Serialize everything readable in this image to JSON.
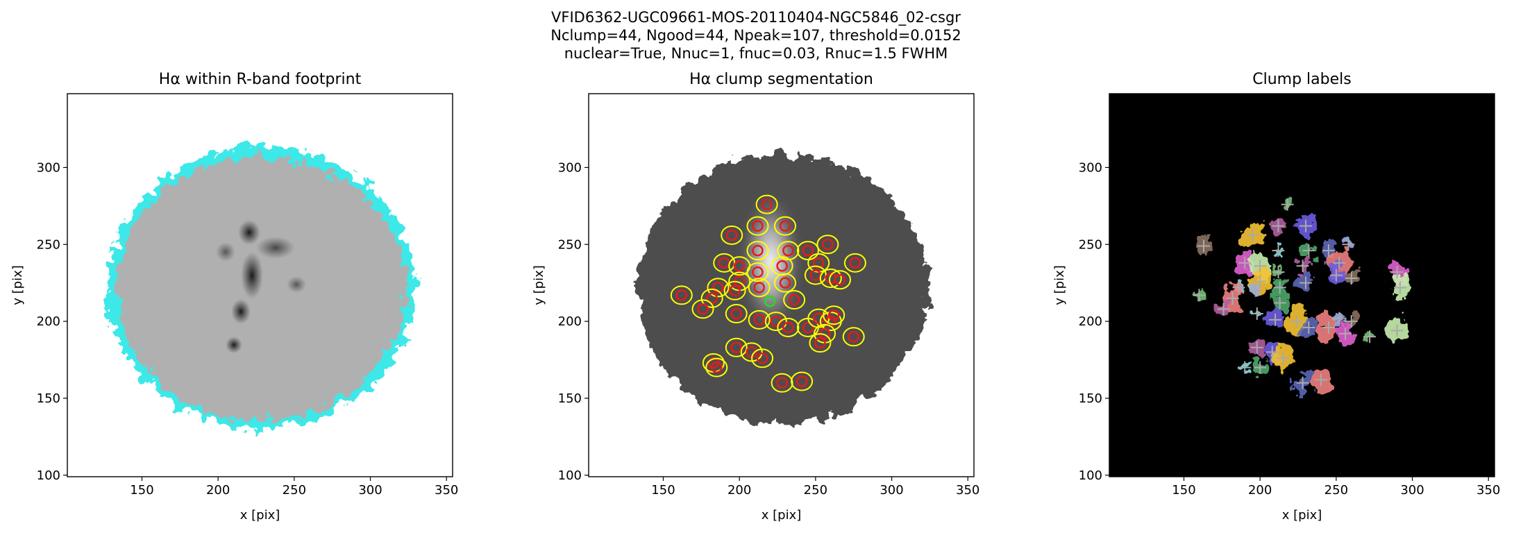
{
  "suptitle": [
    "VFID6362-UGC09661-MOS-20110404-NGC5846_02-csgr",
    "Nclump=44, Ngood=44, Npeak=107, threshold=0.0152",
    "nuclear=True, Nnuc=1, fnuc=0.03, Rnuc=1.5 FWHM"
  ],
  "chart_data": [
    {
      "type": "image",
      "title": "Hα within R-band footprint",
      "xlabel": "x [pix]",
      "ylabel": "y [pix]",
      "xlim": [
        101,
        354
      ],
      "ylim": [
        99,
        348
      ],
      "xticks": [
        150,
        200,
        250,
        300,
        350
      ],
      "yticks": [
        100,
        150,
        200,
        250,
        300
      ]
    },
    {
      "type": "image",
      "title": "Hα clump segmentation",
      "xlabel": "x [pix]",
      "ylabel": "y [pix]",
      "xlim": [
        101,
        354
      ],
      "ylim": [
        99,
        348
      ],
      "xticks": [
        150,
        200,
        250,
        300,
        350
      ],
      "yticks": [
        100,
        150,
        200,
        250,
        300
      ],
      "marker": "circle",
      "contour_color": "#ffff00",
      "series": [
        {
          "color": "#e8191c",
          "x": [
            218,
            212,
            230,
            195,
            212,
            232,
            245,
            252,
            258,
            190,
            200,
            212,
            228,
            250,
            200,
            186,
            213,
            230,
            182,
            197,
            260,
            266,
            276,
            162,
            176,
            198,
            224,
            213,
            232,
            245,
            252,
            260,
            256,
            275,
            198,
            208,
            215,
            183,
            185,
            228,
            241,
            253,
            262,
            236
          ],
          "y": [
            276,
            262,
            262,
            256,
            246,
            246,
            246,
            238,
            250,
            238,
            236,
            232,
            236,
            230,
            226,
            222,
            222,
            225,
            215,
            220,
            228,
            227,
            238,
            217,
            208,
            205,
            200,
            201,
            196,
            196,
            202,
            200,
            192,
            190,
            183,
            180,
            176,
            173,
            170,
            160,
            161,
            186,
            204,
            214
          ]
        },
        {
          "color": "#22dd22",
          "x": [
            220
          ],
          "y": [
            213
          ]
        }
      ]
    },
    {
      "type": "image",
      "title": "Clump labels",
      "xlabel": "x [pix]",
      "ylabel": "y [pix]",
      "xlim": [
        101,
        354
      ],
      "ylim": [
        99,
        348
      ],
      "xticks": [
        150,
        200,
        250,
        300,
        350
      ],
      "yticks": [
        100,
        150,
        200,
        250,
        300
      ],
      "marker": "plus",
      "background": "#000000",
      "palette": [
        "#6fbf73",
        "#b05fa0",
        "#6c5ce0",
        "#f5c431",
        "#7ee0e8",
        "#4da86a",
        "#5d68b8",
        "#f08080",
        "#9aaee8",
        "#8a7060",
        "#e060d0",
        "#c8f0b0"
      ],
      "series": [
        {
          "color": "#aaaaaa",
          "x": [
            218,
            212,
            230,
            195,
            212,
            232,
            245,
            252,
            258,
            163,
            190,
            200,
            212,
            228,
            250,
            200,
            186,
            213,
            230,
            182,
            197,
            260,
            290,
            292,
            160,
            176,
            210,
            224,
            198,
            213,
            232,
            245,
            252,
            260,
            256,
            290,
            272,
            198,
            208,
            215,
            190,
            200,
            228,
            240
          ],
          "y": [
            276,
            262,
            262,
            256,
            246,
            246,
            246,
            238,
            250,
            249,
            238,
            236,
            232,
            236,
            230,
            226,
            222,
            222,
            225,
            215,
            220,
            228,
            232,
            222,
            217,
            208,
            201,
            200,
            205,
            212,
            196,
            196,
            202,
            200,
            192,
            194,
            190,
            183,
            180,
            176,
            170,
            170,
            160,
            162
          ]
        }
      ]
    }
  ]
}
